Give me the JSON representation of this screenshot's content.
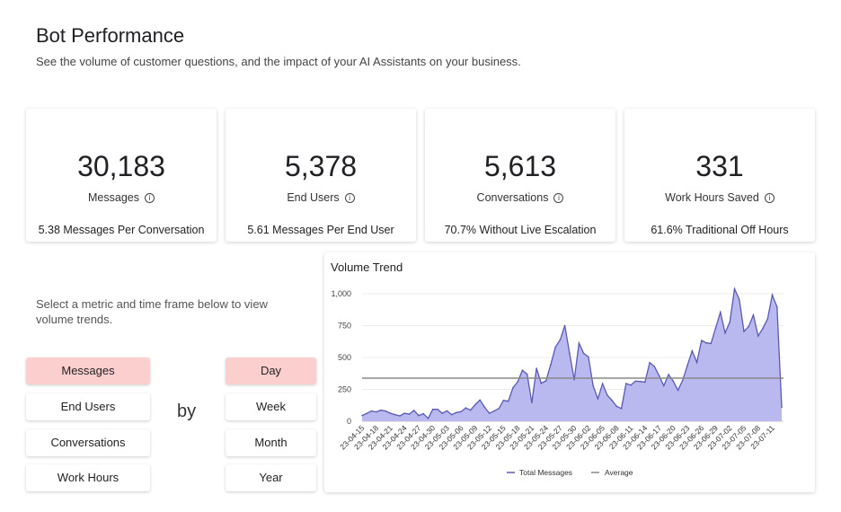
{
  "header": {
    "title": "Bot Performance",
    "subtitle": "See the volume of customer questions, and the impact of your AI Assistants on your business."
  },
  "cards": [
    {
      "value": "30,183",
      "label": "Messages",
      "info_icon": "ⓘ",
      "sub": "5.38 Messages Per Conversation"
    },
    {
      "value": "5,378",
      "label": "End Users",
      "info_icon": "ⓘ",
      "sub": "5.61 Messages Per End User"
    },
    {
      "value": "5,613",
      "label": "Conversations",
      "info_icon": "ⓘ",
      "sub": "70.7% Without Live Escalation"
    },
    {
      "value": "331",
      "label": "Work Hours Saved",
      "info_icon": "ⓘ",
      "sub": "61.6% Traditional Off Hours"
    }
  ],
  "selector": {
    "prompt": "Select a metric and time frame below to view volume trends.",
    "metrics": [
      {
        "label": "Messages",
        "selected": true
      },
      {
        "label": "End Users",
        "selected": false
      },
      {
        "label": "Conversations",
        "selected": false
      },
      {
        "label": "Work Hours",
        "selected": false
      }
    ],
    "by": "by",
    "timeframes": [
      {
        "label": "Day",
        "selected": true
      },
      {
        "label": "Week",
        "selected": false
      },
      {
        "label": "Month",
        "selected": false
      },
      {
        "label": "Year",
        "selected": false
      }
    ],
    "selected_color": "#fccfcf"
  },
  "chart_data": {
    "type": "area",
    "title": "Volume Trend",
    "start_date": "2023-04-15",
    "tick_labels": [
      "23-04-15",
      "23-04-18",
      "23-04-21",
      "23-04-24",
      "23-04-27",
      "23-04-30",
      "23-05-03",
      "23-05-06",
      "23-05-09",
      "23-05-12",
      "23-05-15",
      "23-05-18",
      "23-05-21",
      "23-05-24",
      "23-05-27",
      "23-05-30",
      "23-06-02",
      "23-06-05",
      "23-06-08",
      "23-06-11",
      "23-06-14",
      "23-06-17",
      "23-06-20",
      "23-06-23",
      "23-06-26",
      "23-06-29",
      "23-07-02",
      "23-07-05",
      "23-07-08",
      "23-07-11"
    ],
    "y_ticks": [
      "0",
      "250",
      "500",
      "750",
      "1,000"
    ],
    "ylim": [
      0,
      1100
    ],
    "series": [
      {
        "name": "Total Messages",
        "color": "#5a5ab4",
        "fill": "#b9b9f0",
        "values": [
          45,
          62,
          80,
          73,
          87,
          80,
          63,
          52,
          42,
          63,
          56,
          85,
          45,
          59,
          23,
          94,
          94,
          63,
          82,
          52,
          68,
          75,
          105,
          87,
          130,
          167,
          110,
          63,
          80,
          100,
          164,
          157,
          263,
          310,
          400,
          369,
          146,
          415,
          298,
          317,
          443,
          580,
          638,
          751,
          533,
          326,
          613,
          533,
          505,
          279,
          176,
          296,
          204,
          164,
          117,
          100,
          296,
          284,
          315,
          312,
          307,
          460,
          430,
          357,
          279,
          366,
          315,
          244,
          322,
          439,
          552,
          462,
          634,
          615,
          610,
          732,
          855,
          692,
          779,
          1038,
          955,
          704,
          744,
          833,
          669,
          728,
          803,
          991,
          897,
          110
        ]
      },
      {
        "name": "Average",
        "color": "#888888",
        "value": 338
      }
    ],
    "grid": true,
    "legend": "bottom"
  }
}
